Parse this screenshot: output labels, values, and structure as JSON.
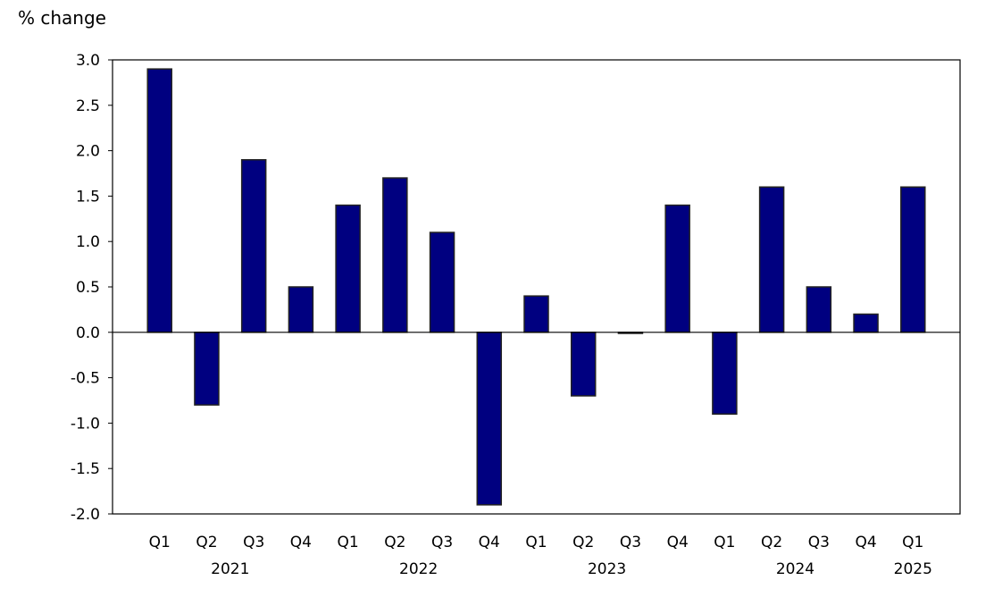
{
  "chart_data": {
    "type": "bar",
    "title": "",
    "ylabel": "% change",
    "xlabel": "",
    "ylim": [
      -2.0,
      3.0
    ],
    "yticks": [
      "3.0",
      "2.5",
      "2.0",
      "1.5",
      "1.0",
      "0.5",
      "0.0",
      "-0.5",
      "-1.0",
      "-1.5",
      "-2.0"
    ],
    "categories": [
      "Q1",
      "Q2",
      "Q3",
      "Q4",
      "Q1",
      "Q2",
      "Q3",
      "Q4",
      "Q1",
      "Q2",
      "Q3",
      "Q4",
      "Q1",
      "Q2",
      "Q3",
      "Q4",
      "Q1"
    ],
    "year_groups": [
      {
        "label": "2021",
        "start": 0,
        "end": 3
      },
      {
        "label": "2022",
        "start": 4,
        "end": 7
      },
      {
        "label": "2023",
        "start": 8,
        "end": 11
      },
      {
        "label": "2024",
        "start": 12,
        "end": 15
      },
      {
        "label": "2025",
        "start": 16,
        "end": 16
      }
    ],
    "values": [
      2.9,
      -0.8,
      1.9,
      0.5,
      1.4,
      1.7,
      1.1,
      -1.9,
      0.4,
      -0.7,
      0.0,
      1.4,
      -0.9,
      1.6,
      0.5,
      0.2,
      1.6
    ],
    "bar_color": "#000080",
    "grid": false,
    "legend": "none"
  }
}
